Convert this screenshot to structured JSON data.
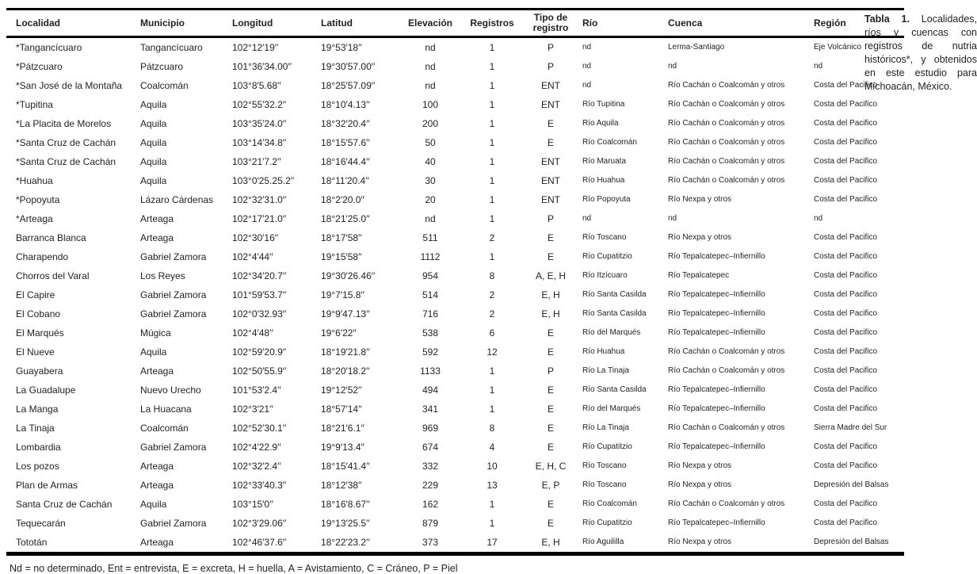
{
  "colors": {
    "text": "#231f20",
    "rule": "#000000"
  },
  "caption": {
    "label": "Tabla 1.",
    "text": "Localidades, ríos y cuencas con registros de nutria históricos*, y obtenidos en este estudio para Michoacán, México."
  },
  "footnote": "Nd = no determinado, Ent = entrevista, E = excreta, H = huella, A = Avistamiento, C = Cráneo, P = Piel",
  "table": {
    "columns": [
      "Localidad",
      "Municipio",
      "Longitud",
      "Latitud",
      "Elevación",
      "Registros",
      "Tipo de registro",
      "Río",
      "Cuenca",
      "Región"
    ],
    "col_keys": [
      "localidad",
      "municipio",
      "longitud",
      "latitud",
      "elevacion",
      "registros",
      "tipo-de-registro",
      "rio",
      "cuenca",
      "region"
    ],
    "rows": [
      [
        "*Tangancícuaro",
        "Tangancícuaro",
        "102°12′19′′",
        "19°53′18′′",
        "nd",
        "1",
        "P",
        "nd",
        "Lerma-Santiago",
        "Eje Volcánico"
      ],
      [
        "*Pátzcuaro",
        "Pátzcuaro",
        "101°36′34.00′′",
        "19°30′57.00′′",
        "nd",
        "1",
        "P",
        "nd",
        "nd",
        "nd"
      ],
      [
        "*San José de la Montaña",
        "Coalcomán",
        "103°8′5.68′′",
        "18°25′57.09′′",
        "nd",
        "1",
        "ENT",
        "nd",
        "Río Cachán o Coalcomán y otros",
        "Costa del Pacifico"
      ],
      [
        "*Tupitina",
        "Aquila",
        "102°55′32.2′′",
        "18°10′4.13′′",
        "100",
        "1",
        "ENT",
        "Río Tupitina",
        "Río Cachán o Coalcomán y otros",
        "Costa del Pacifico"
      ],
      [
        "*La Placita de Morelos",
        "Aquila",
        "103°35′24.0′′",
        "18°32′20.4′′",
        "200",
        "1",
        "E",
        "Río Aquila",
        "Río Cachán o Coalcomán y otros",
        "Costa del Pacifico"
      ],
      [
        "*Santa Cruz de Cachán",
        "Aquila",
        "103°14′34.8′′",
        "18°15′57.6′′",
        "50",
        "1",
        "E",
        "Río Coalcomán",
        "Río Cachán o Coalcomán y otros",
        "Costa del Pacifico"
      ],
      [
        "*Santa Cruz de Cachán",
        "Aquila",
        "103°21′7.2′′",
        "18°16′44.4′′",
        "40",
        "1",
        "ENT",
        "Río Maruata",
        "Río Cachán o Coalcomán y otros",
        "Costa del Pacifico"
      ],
      [
        "*Huahua",
        "Aquila",
        "103°0′25.25.2′′",
        "18°11′20.4′′",
        "30",
        "1",
        "ENT",
        "Río Huahua",
        "Río Cachán o Coalcomán y otros",
        "Costa del Pacifico"
      ],
      [
        "*Popoyuta",
        "Lázaro Cárdenas",
        "102°32′31.0′′",
        "18°2′20.0′′",
        "20",
        "1",
        "ENT",
        "Río Popoyuta",
        "Río Nexpa y otros",
        "Costa del Pacifico"
      ],
      [
        "*Arteaga",
        "Arteaga",
        "102°17′21.0′′",
        "18°21′25.0′′",
        "nd",
        "1",
        "P",
        "nd",
        "nd",
        "nd"
      ],
      [
        "Barranca Blanca",
        "Arteaga",
        "102°30′16′′",
        "18°17′58′′",
        "511",
        "2",
        "E",
        "Río Toscano",
        "Río Nexpa y otros",
        "Costa del Pacifico"
      ],
      [
        "Charapendo",
        "Gabriel Zamora",
        "102°4′44′′",
        "19°15′58′′",
        "1112",
        "1",
        "E",
        "Río Cupatitzio",
        "Río Tepalcatepec–Infiernillo",
        "Costa del Pacifico"
      ],
      [
        "Chorros del Varal",
        "Los Reyes",
        "102°34′20.7′′",
        "19°30′26.46′′",
        "954",
        "8",
        "A, E, H",
        "Río Itzícuaro",
        "Río Tepalcatepec",
        "Costa del Pacifico"
      ],
      [
        "El Capire",
        "Gabriel Zamora",
        "101°59′53.7′′",
        "19°7′15.8′′",
        "514",
        "2",
        "E, H",
        "Río Santa Casilda",
        "Río Tepalcatepec–Infiernillo",
        "Costa del Pacifico"
      ],
      [
        "El Cobano",
        "Gabriel Zamora",
        "102°0′32.93′′",
        "19°9′47.13′′",
        "716",
        "2",
        "E, H",
        "Río Santa Casilda",
        "Río Tepalcatepec–Infiernillo",
        "Costa del Pacifico"
      ],
      [
        "El Marqués",
        "Múgica",
        "102°4′48′′",
        "19°6′22′′",
        "538",
        "6",
        "E",
        "Río del Marqués",
        "Río Tepalcatepec–Infiernillo",
        "Costa del Pacifico"
      ],
      [
        "El Nueve",
        "Aquila",
        "102°59′20.9′′",
        "18°19′21.8′′",
        "592",
        "12",
        "E",
        "Río Huahua",
        "Río Cachán o Coalcomán y otros",
        "Costa del Pacifico"
      ],
      [
        "Guayabera",
        "Arteaga",
        "102°50′55.9′′",
        "18°20′18.2′′",
        "1133",
        "1",
        "P",
        "Río La Tinaja",
        "Río Cachán o Coalcomán y otros",
        "Costa del Pacifico"
      ],
      [
        "La Guadalupe",
        "Nuevo Urecho",
        "101°53′2.4′′",
        "19°12′52′′",
        "494",
        "1",
        "E",
        "Río Santa Casilda",
        "Río Tepalcatepec–Infiernillo",
        "Costa del Pacifico"
      ],
      [
        "La Manga",
        "La Huacana",
        "102°3′21′′",
        "18°57′14′′",
        "341",
        "1",
        "E",
        "Río del Marqués",
        "Río Tepalcatepec–Infiernillo",
        "Costa del Pacifico"
      ],
      [
        "La Tinaja",
        "Coalcomán",
        "102°52′30.1′′",
        "18°21′6.1′′",
        "969",
        "8",
        "E",
        "Río La Tinaja",
        "Río Cachán o Coalcomán y otros",
        "Sierra Madre del Sur"
      ],
      [
        "Lombardia",
        "Gabriel Zamora",
        "102°4′22.9′′",
        "19°9′13.4′′",
        "674",
        "4",
        "E",
        "Río Cupatitzio",
        "Río Tepalcatepec–Infiernillo",
        "Costa del Pacifico"
      ],
      [
        "Los pozos",
        "Arteaga",
        "102°32′2.4′′",
        "18°15′41.4′′",
        "332",
        "10",
        "E, H, C",
        "Río Toscano",
        "Río Nexpa y otros",
        "Costa del Pacifico"
      ],
      [
        "Plan de Armas",
        "Arteaga",
        "102°33′40.3′′",
        "18°12′38′′",
        "229",
        "13",
        "E, P",
        "Río Toscano",
        "Río Nexpa y otros",
        "Depresión del Balsas"
      ],
      [
        "Santa Cruz de Cachán",
        "Aquila",
        "103°15′0′′",
        "18°16′8.67′′",
        "162",
        "1",
        "E",
        "Río Coalcomán",
        "Río Cachán o Coalcomán y otros",
        "Costa del Pacifico"
      ],
      [
        "Tequecarán",
        "Gabriel Zamora",
        "102°3′29.06′′",
        "19°13′25.5′′",
        "879",
        "1",
        "E",
        "Río Cupatitzio",
        "Río Tepalcatepec–Infiernillo",
        "Costa del Pacifico"
      ],
      [
        "Tototán",
        "Arteaga",
        "102°46′37.6′′",
        "18°22′23.2′′",
        "373",
        "17",
        "E, H",
        "Río Aguililla",
        "Río Nexpa y otros",
        "Depresión del Balsas"
      ]
    ]
  }
}
